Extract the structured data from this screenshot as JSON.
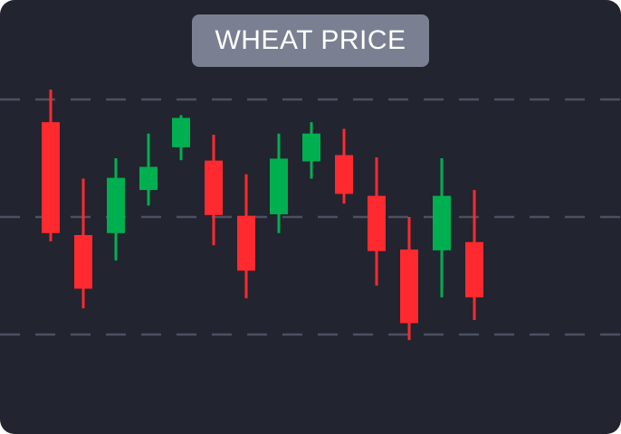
{
  "chart_data": {
    "type": "candlestick",
    "title": "WHEAT PRICE",
    "xlabel": "",
    "ylabel": "",
    "ylim": [
      0,
      100
    ],
    "grid": true,
    "gridlines": [
      20,
      50,
      80
    ],
    "colors": {
      "up": "#00b050",
      "down": "#ff2a2f",
      "background": "#22242f",
      "grid": "#4c5162"
    },
    "candles": [
      {
        "open": 74.2,
        "high": 82.5,
        "low": 43.8,
        "close": 45.9,
        "direction": "down"
      },
      {
        "open": 45.4,
        "high": 59.8,
        "low": 26.7,
        "close": 31.7,
        "direction": "down"
      },
      {
        "open": 45.9,
        "high": 65.0,
        "low": 38.9,
        "close": 60.0,
        "direction": "up"
      },
      {
        "open": 56.9,
        "high": 71.3,
        "low": 52.9,
        "close": 62.8,
        "direction": "up"
      },
      {
        "open": 67.8,
        "high": 76.0,
        "low": 64.5,
        "close": 75.3,
        "direction": "up"
      },
      {
        "open": 64.4,
        "high": 71.0,
        "low": 42.8,
        "close": 50.5,
        "direction": "down"
      },
      {
        "open": 50.3,
        "high": 60.9,
        "low": 29.3,
        "close": 36.3,
        "direction": "down"
      },
      {
        "open": 50.7,
        "high": 71.3,
        "low": 45.9,
        "close": 64.9,
        "direction": "up"
      },
      {
        "open": 64.2,
        "high": 74.2,
        "low": 59.8,
        "close": 71.3,
        "direction": "up"
      },
      {
        "open": 65.8,
        "high": 72.5,
        "low": 53.4,
        "close": 55.9,
        "direction": "down"
      },
      {
        "open": 55.4,
        "high": 65.2,
        "low": 32.5,
        "close": 41.3,
        "direction": "down"
      },
      {
        "open": 41.7,
        "high": 50.0,
        "low": 18.6,
        "close": 22.9,
        "direction": "down"
      },
      {
        "open": 41.5,
        "high": 65.0,
        "low": 29.5,
        "close": 55.4,
        "direction": "up"
      },
      {
        "open": 43.6,
        "high": 56.9,
        "low": 23.7,
        "close": 29.5,
        "direction": "down"
      }
    ]
  }
}
